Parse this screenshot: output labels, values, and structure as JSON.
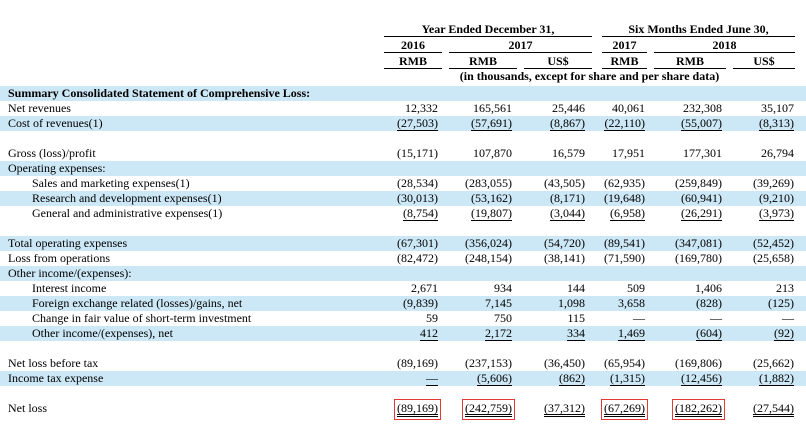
{
  "header": {
    "year_ended": "Year Ended December 31,",
    "six_months": "Six Months Ended June 30,",
    "y2016": "2016",
    "y2017a": "2017",
    "y2017b": "2017",
    "y2018": "2018",
    "currencies": [
      "RMB",
      "RMB",
      "US$",
      "RMB",
      "RMB",
      "US$"
    ],
    "note": "(in thousands, except for share and per share data)"
  },
  "rows": [
    {
      "label": "Summary Consolidated Statement of Comprehensive Loss:",
      "bold": true,
      "shade": true,
      "values": []
    },
    {
      "label": "Net revenues",
      "shade": false,
      "values": [
        "12,332",
        "165,561",
        "25,446",
        "40,061",
        "232,308",
        "35,107"
      ]
    },
    {
      "label": "Cost of revenues(1)",
      "shade": true,
      "values": [
        "(27,503)",
        "(57,691)",
        "(8,867)",
        "(22,110)",
        "(55,007)",
        "(8,313)"
      ]
    },
    {
      "label": "",
      "blank": true,
      "values": []
    },
    {
      "label": "Gross (loss)/profit",
      "shade": false,
      "values": [
        "(15,171)",
        "107,870",
        "16,579",
        "17,951",
        "177,301",
        "26,794"
      ]
    },
    {
      "label": "Operating expenses:",
      "shade": true,
      "values": []
    },
    {
      "label": "Sales and marketing expenses(1)",
      "indent": true,
      "shade": false,
      "values": [
        "(28,534)",
        "(283,055)",
        "(43,505)",
        "(62,935)",
        "(259,849)",
        "(39,269)"
      ]
    },
    {
      "label": "Research and development expenses(1)",
      "indent": true,
      "shade": true,
      "values": [
        "(30,013)",
        "(53,162)",
        "(8,171)",
        "(19,648)",
        "(60,941)",
        "(9,210)"
      ]
    },
    {
      "label": "General and administrative expenses(1)",
      "indent": true,
      "shade": false,
      "values": [
        "(8,754)",
        "(19,807)",
        "(3,044)",
        "(6,958)",
        "(26,291)",
        "(3,973)"
      ]
    },
    {
      "label": "",
      "blank": true,
      "values": []
    },
    {
      "label": "Total operating expenses",
      "shade": true,
      "values": [
        "(67,301)",
        "(356,024)",
        "(54,720)",
        "(89,541)",
        "(347,081)",
        "(52,452)"
      ]
    },
    {
      "label": "Loss from operations",
      "shade": false,
      "values": [
        "(82,472)",
        "(248,154)",
        "(38,141)",
        "(71,590)",
        "(169,780)",
        "(25,658)"
      ]
    },
    {
      "label": "Other income/(expenses):",
      "shade": true,
      "values": []
    },
    {
      "label": "Interest income",
      "indent": true,
      "shade": false,
      "values": [
        "2,671",
        "934",
        "144",
        "509",
        "1,406",
        "213"
      ]
    },
    {
      "label": "Foreign exchange related (losses)/gains, net",
      "indent": true,
      "shade": true,
      "values": [
        "(9,839)",
        "7,145",
        "1,098",
        "3,658",
        "(828)",
        "(125)"
      ]
    },
    {
      "label": "Change in fair value of short-term investment",
      "indent": true,
      "shade": false,
      "values": [
        "59",
        "750",
        "115",
        "—",
        "—",
        "—"
      ]
    },
    {
      "label": "Other income/(expenses), net",
      "indent": true,
      "shade": true,
      "values": [
        "412",
        "2,172",
        "334",
        "1,469",
        "(604)",
        "(92)"
      ]
    },
    {
      "label": "",
      "blank": true,
      "values": []
    },
    {
      "label": "Net loss before tax",
      "shade": false,
      "values": [
        "(89,169)",
        "(237,153)",
        "(36,450)",
        "(65,954)",
        "(169,806)",
        "(25,662)"
      ]
    },
    {
      "label": "Income tax expense",
      "shade": true,
      "values": [
        "—",
        "(5,606)",
        "(862)",
        "(1,315)",
        "(12,456)",
        "(1,882)"
      ]
    },
    {
      "label": "",
      "blank": true,
      "values": []
    },
    {
      "label": "Net loss",
      "shade": false,
      "values": [
        "(89,169)",
        "(242,759)",
        "(37,312)",
        "(67,269)",
        "(182,262)",
        "(27,544)"
      ]
    }
  ],
  "highlight_color": "#e53935",
  "shade_color": "#cce7f5"
}
